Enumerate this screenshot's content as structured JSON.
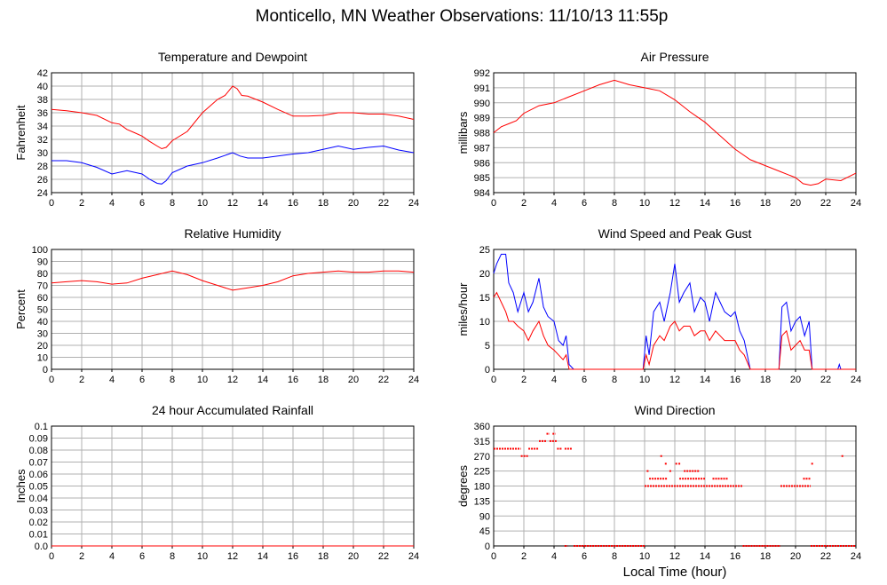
{
  "page_title": "Monticello, MN Weather Observations: 11/10/13 11:55p",
  "x_axis_label": "Local Time (hour)",
  "chart_data": [
    {
      "id": "temp",
      "type": "line",
      "title": "Temperature and Dewpoint",
      "ylabel": "Fahrenheit",
      "xlim": [
        0,
        24
      ],
      "ylim": [
        24,
        42
      ],
      "xticks": [
        0,
        2,
        4,
        6,
        8,
        10,
        12,
        14,
        16,
        18,
        20,
        22,
        24
      ],
      "yticks": [
        24,
        26,
        28,
        30,
        32,
        34,
        36,
        38,
        40,
        42
      ],
      "grid": true,
      "series": [
        {
          "color": "#ff0000",
          "x": [
            0,
            1,
            2,
            3,
            4,
            4.5,
            5,
            5.5,
            6,
            6.5,
            7,
            7.3,
            7.6,
            8,
            9,
            10,
            11,
            11.5,
            12,
            12.3,
            12.6,
            13,
            14,
            15,
            16,
            17,
            18,
            19,
            20,
            21,
            22,
            23,
            24
          ],
          "y": [
            36.5,
            36.3,
            36,
            35.6,
            34.5,
            34.3,
            33.5,
            33,
            32.5,
            31.7,
            31,
            30.6,
            30.8,
            31.8,
            33.2,
            36,
            38,
            38.6,
            40,
            39.6,
            38.6,
            38.5,
            37.6,
            36.5,
            35.5,
            35.5,
            35.6,
            36,
            36,
            35.8,
            35.8,
            35.5,
            35
          ]
        },
        {
          "color": "#0000ff",
          "x": [
            0,
            1,
            2,
            3,
            4,
            5,
            6,
            6.5,
            7,
            7.3,
            7.6,
            8,
            9,
            10,
            11,
            12,
            12.5,
            13,
            14,
            15,
            16,
            17,
            18,
            19,
            20,
            21,
            22,
            23,
            24
          ],
          "y": [
            28.8,
            28.8,
            28.5,
            27.8,
            26.8,
            27.3,
            26.8,
            26,
            25.4,
            25.3,
            25.8,
            27,
            28,
            28.5,
            29.2,
            30,
            29.5,
            29.2,
            29.2,
            29.5,
            29.8,
            30,
            30.5,
            31,
            30.5,
            30.8,
            31,
            30.4,
            30
          ]
        }
      ]
    },
    {
      "id": "pressure",
      "type": "line",
      "title": "Air Pressure",
      "ylabel": "millibars",
      "xlim": [
        0,
        24
      ],
      "ylim": [
        984,
        992
      ],
      "xticks": [
        0,
        2,
        4,
        6,
        8,
        10,
        12,
        14,
        16,
        18,
        20,
        22,
        24
      ],
      "yticks": [
        984,
        985,
        986,
        987,
        988,
        989,
        990,
        991,
        992
      ],
      "grid": true,
      "series": [
        {
          "color": "#ff0000",
          "x": [
            0,
            0.5,
            1,
            1.5,
            2,
            3,
            4,
            5,
            6,
            7,
            8,
            9,
            10,
            11,
            12,
            13,
            14,
            15,
            16,
            17,
            18,
            19,
            20,
            20.5,
            21,
            21.5,
            22,
            23,
            24
          ],
          "y": [
            988,
            988.4,
            988.6,
            988.8,
            989.3,
            989.8,
            990,
            990.4,
            990.8,
            991.2,
            991.5,
            991.2,
            991,
            990.8,
            990.2,
            989.4,
            988.7,
            987.8,
            986.9,
            986.2,
            985.8,
            985.4,
            985,
            984.6,
            984.5,
            984.6,
            984.9,
            984.8,
            985.3
          ]
        }
      ]
    },
    {
      "id": "humidity",
      "type": "line",
      "title": "Relative Humidity",
      "ylabel": "Percent",
      "xlim": [
        0,
        24
      ],
      "ylim": [
        0,
        100
      ],
      "xticks": [
        0,
        2,
        4,
        6,
        8,
        10,
        12,
        14,
        16,
        18,
        20,
        22,
        24
      ],
      "yticks": [
        0,
        10,
        20,
        30,
        40,
        50,
        60,
        70,
        80,
        90,
        100
      ],
      "grid": true,
      "series": [
        {
          "color": "#ff0000",
          "x": [
            0,
            1,
            2,
            3,
            4,
            5,
            6,
            7,
            8,
            9,
            10,
            11,
            12,
            13,
            14,
            15,
            16,
            17,
            18,
            19,
            20,
            21,
            22,
            23,
            24
          ],
          "y": [
            72,
            73,
            74,
            73,
            71,
            72,
            76,
            79,
            82,
            79,
            74,
            70,
            66,
            68,
            70,
            73,
            78,
            80,
            81,
            82,
            81,
            81,
            82,
            82,
            81
          ]
        }
      ]
    },
    {
      "id": "wind",
      "type": "line",
      "title": "Wind Speed and Peak Gust",
      "ylabel": "miles/hour",
      "xlim": [
        0,
        24
      ],
      "ylim": [
        0,
        25
      ],
      "xticks": [
        0,
        2,
        4,
        6,
        8,
        10,
        12,
        14,
        16,
        18,
        20,
        22,
        24
      ],
      "yticks": [
        0,
        5,
        10,
        15,
        20,
        25
      ],
      "grid": true,
      "series": [
        {
          "color": "#0000ff",
          "x": [
            0,
            0.2,
            0.5,
            0.8,
            1,
            1.3,
            1.6,
            2,
            2.3,
            2.6,
            3,
            3.3,
            3.6,
            4,
            4.3,
            4.6,
            4.8,
            5,
            5.3,
            6,
            8,
            9.5,
            9.9,
            10.1,
            10.3,
            10.6,
            11,
            11.3,
            11.7,
            12,
            12.3,
            12.6,
            13,
            13.3,
            13.7,
            14,
            14.3,
            14.7,
            15,
            15.3,
            15.7,
            16,
            16.3,
            16.6,
            17,
            18,
            18.9,
            19.1,
            19.4,
            19.7,
            20,
            20.3,
            20.6,
            20.9,
            21.1,
            21.5,
            22,
            22.8,
            22.9,
            23,
            23.2,
            24
          ],
          "y": [
            20,
            22,
            24,
            24,
            18,
            16,
            12,
            16,
            12,
            14,
            19,
            13,
            11,
            10,
            6,
            5,
            7,
            1,
            0,
            0,
            0,
            0,
            0,
            7,
            3,
            12,
            14,
            10,
            16,
            22,
            14,
            16,
            18,
            12,
            15,
            14,
            10,
            16,
            14,
            12,
            11,
            12,
            8,
            6,
            0,
            0,
            0,
            13,
            14,
            8,
            10,
            11,
            7,
            10,
            0,
            0,
            0,
            0,
            1,
            0,
            0,
            0
          ]
        },
        {
          "color": "#ff0000",
          "x": [
            0,
            0.2,
            0.5,
            0.8,
            1,
            1.3,
            1.6,
            2,
            2.3,
            2.6,
            3,
            3.3,
            3.6,
            4,
            4.3,
            4.6,
            4.8,
            5,
            5.3,
            6,
            8,
            9.5,
            9.9,
            10.1,
            10.3,
            10.6,
            11,
            11.3,
            11.7,
            12,
            12.3,
            12.6,
            13,
            13.3,
            13.7,
            14,
            14.3,
            14.7,
            15,
            15.3,
            15.7,
            16,
            16.3,
            16.6,
            17,
            18,
            18.9,
            19.1,
            19.4,
            19.7,
            20,
            20.3,
            20.6,
            20.9,
            21.1,
            21.5,
            22,
            24
          ],
          "y": [
            15,
            16,
            14,
            12,
            10,
            10,
            9,
            8,
            6,
            8,
            10,
            7,
            5,
            4,
            3,
            2,
            3,
            0,
            0,
            0,
            0,
            0,
            0,
            3,
            1,
            5,
            7,
            6,
            9,
            10,
            8,
            9,
            9,
            7,
            8,
            8,
            6,
            8,
            7,
            6,
            6,
            6,
            4,
            3,
            0,
            0,
            0,
            7,
            8,
            4,
            5,
            6,
            4,
            4,
            0,
            0,
            0,
            0
          ]
        }
      ]
    },
    {
      "id": "rain",
      "type": "line",
      "title": "24 hour Accumulated Rainfall",
      "ylabel": "Inches",
      "xlim": [
        0,
        24
      ],
      "ylim": [
        0,
        0.1
      ],
      "xticks": [
        0,
        2,
        4,
        6,
        8,
        10,
        12,
        14,
        16,
        18,
        20,
        22,
        24
      ],
      "yticks": [
        0.0,
        0.01,
        0.02,
        0.03,
        0.04,
        0.05,
        0.06,
        0.07,
        0.08,
        0.09,
        0.1
      ],
      "ytick_labels": [
        "0.0",
        "0.01",
        "0.02",
        "0.03",
        "0.04",
        "0.05",
        "0.06",
        "0.07",
        "0.08",
        "0.09",
        "0.1"
      ],
      "grid": true,
      "series": [
        {
          "color": "#ff0000",
          "x": [
            0,
            24
          ],
          "y": [
            0,
            0
          ]
        }
      ]
    },
    {
      "id": "direction",
      "type": "scatter",
      "title": "Wind Direction",
      "ylabel": "degrees",
      "xlim": [
        0,
        24
      ],
      "ylim": [
        0,
        360
      ],
      "xticks": [
        0,
        2,
        4,
        6,
        8,
        10,
        12,
        14,
        16,
        18,
        20,
        22,
        24
      ],
      "yticks": [
        0,
        45,
        90,
        135,
        180,
        225,
        270,
        315,
        360
      ],
      "grid": true,
      "series": [
        {
          "color": "#ff0000",
          "runs": [
            {
              "x": [
                0,
                1.8
              ],
              "y": 292
            },
            {
              "x": [
                1.8,
                2.3
              ],
              "y": 270
            },
            {
              "x": [
                2.3,
                3.0
              ],
              "y": 292
            },
            {
              "x": [
                3.0,
                3.5
              ],
              "y": 315
            },
            {
              "x": [
                3.5,
                3.7
              ],
              "y": 337
            },
            {
              "x": [
                3.7,
                4.2
              ],
              "y": 315
            },
            {
              "x": [
                3.9,
                4.1
              ],
              "y": 337
            },
            {
              "x": [
                4.2,
                4.5
              ],
              "y": 292
            },
            {
              "x": [
                4.7,
                5.2
              ],
              "y": 292
            },
            {
              "x": [
                4.7,
                4.9
              ],
              "y": 0
            },
            {
              "x": [
                5.3,
                10.0
              ],
              "y": 0
            },
            {
              "x": [
                10.0,
                16.5
              ],
              "y": 180
            },
            {
              "x": [
                10.3,
                11.5
              ],
              "y": 202
            },
            {
              "x": [
                12.3,
                14.0
              ],
              "y": 202
            },
            {
              "x": [
                12.6,
                13.6
              ],
              "y": 225
            },
            {
              "x": [
                14.5,
                15.5
              ],
              "y": 202
            },
            {
              "x": [
                16.5,
                19.0
              ],
              "y": 0
            },
            {
              "x": [
                19.0,
                21.0
              ],
              "y": 180
            },
            {
              "x": [
                20.5,
                21.0
              ],
              "y": 202
            },
            {
              "x": [
                21.0,
                24.0
              ],
              "y": 0
            }
          ],
          "points": [
            {
              "x": 10.2,
              "y": 225
            },
            {
              "x": 11.1,
              "y": 270
            },
            {
              "x": 11.4,
              "y": 247
            },
            {
              "x": 12.1,
              "y": 247
            },
            {
              "x": 12.3,
              "y": 247
            },
            {
              "x": 21.1,
              "y": 247
            },
            {
              "x": 23.1,
              "y": 270
            },
            {
              "x": 11.7,
              "y": 225
            }
          ]
        }
      ]
    }
  ]
}
